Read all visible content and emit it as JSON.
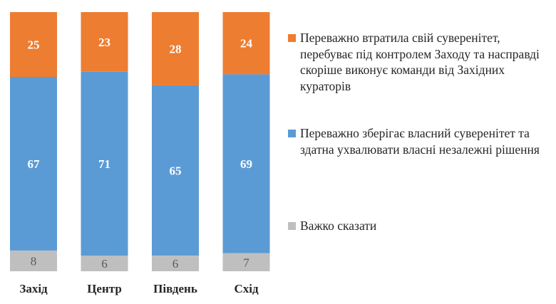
{
  "chart_data": {
    "type": "bar",
    "stacked": true,
    "normalized_percent": true,
    "categories": [
      "Захід",
      "Центр",
      "Південь",
      "Схід"
    ],
    "series": [
      {
        "name": "Важко сказати",
        "values": [
          8,
          6,
          6,
          7
        ],
        "color": "#bfbfbf",
        "label_color": "#595959"
      },
      {
        "name": "Переважно зберігає власний суверенітет та здатна ухвалювати власні незалежні рішення",
        "values": [
          67,
          71,
          65,
          69
        ],
        "color": "#5b9bd5",
        "label_color": "#ffffff"
      },
      {
        "name": "Переважно втратила свій суверенітет, перебуває під контролем Заходу та насправді скоріше виконує команди від Західних кураторів",
        "values": [
          25,
          23,
          28,
          24
        ],
        "color": "#ed7d31",
        "label_color": "#ffffff"
      }
    ],
    "legend_order": [
      2,
      1,
      0
    ],
    "legend_position": "right",
    "data_labels": true,
    "grid": false
  }
}
